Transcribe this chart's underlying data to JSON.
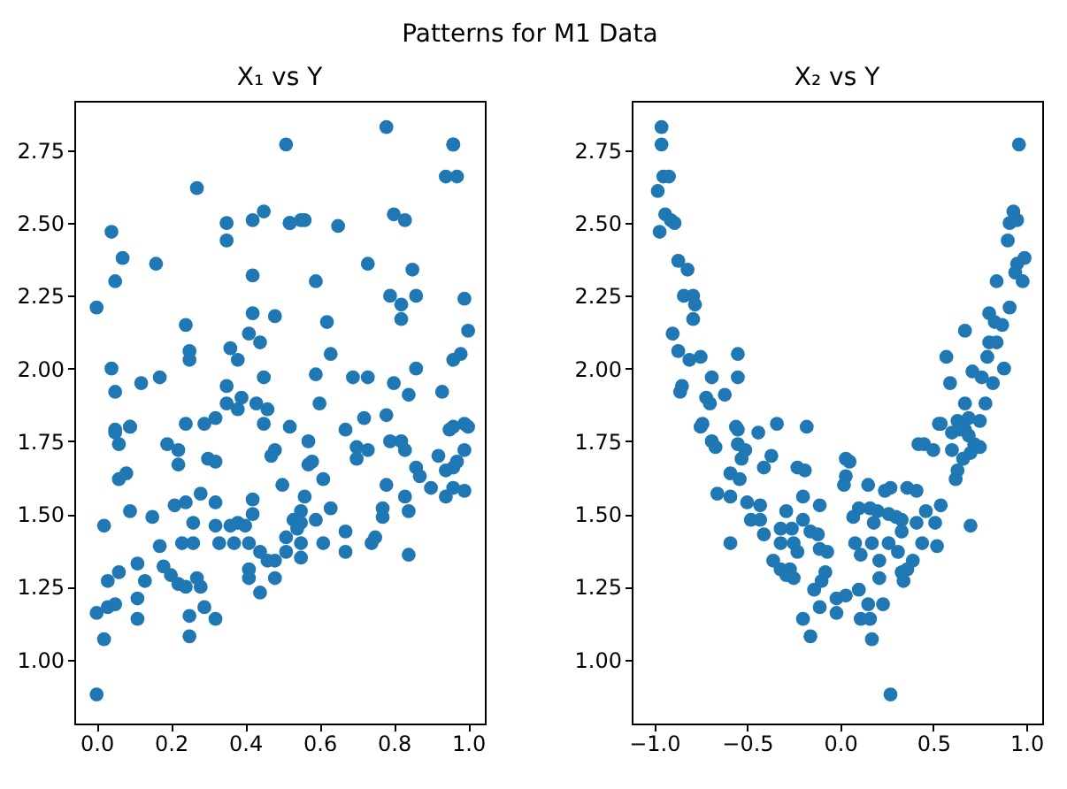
{
  "chart_data": [
    {
      "type": "scatter",
      "title": "X₁ vs Y",
      "annotations": [
        "Patterns for M1 Data"
      ],
      "color": "#1f77b4",
      "marker": "circle",
      "grid": false,
      "xlim": [
        -0.06,
        1.045
      ],
      "ylim": [
        0.78,
        2.92
      ],
      "xticks": [
        {
          "value": 0,
          "label": "0.0"
        },
        {
          "value": 0.2,
          "label": "0.2"
        },
        {
          "value": 0.4,
          "label": "0.4"
        },
        {
          "value": 0.6,
          "label": "0.6"
        },
        {
          "value": 0.8,
          "label": "0.8"
        },
        {
          "value": 1,
          "label": "1.0"
        }
      ],
      "yticks": [
        {
          "value": 1,
          "label": "1.00"
        },
        {
          "value": 1.25,
          "label": "1.25"
        },
        {
          "value": 1.5,
          "label": "1.50"
        },
        {
          "value": 1.75,
          "label": "1.75"
        },
        {
          "value": 2,
          "label": "2.00"
        },
        {
          "value": 2.25,
          "label": "2.25"
        },
        {
          "value": 2.5,
          "label": "2.50"
        },
        {
          "value": 2.75,
          "label": "2.75"
        }
      ],
      "x": [
        0.78,
        0.51,
        0.96,
        0.94,
        0.97,
        0.27,
        0.35,
        0.42,
        0.55,
        0.52,
        0.0,
        0.04,
        0.05,
        0.07,
        0.16,
        0.04,
        0.05,
        0.12,
        0.17,
        0.05,
        0.09,
        0.24,
        0.25,
        0.25,
        0.24,
        0.29,
        0.32,
        0.35,
        0.36,
        0.35,
        0.35,
        0.38,
        0.39,
        0.38,
        0.42,
        0.42,
        0.41,
        0.44,
        0.45,
        0.43,
        0.46,
        0.45,
        0.45,
        0.48,
        0.52,
        0.56,
        0.52,
        0.59,
        0.62,
        0.63,
        0.59,
        0.6,
        0.65,
        0.69,
        0.73,
        0.73,
        0.72,
        0.67,
        0.78,
        0.8,
        0.83,
        0.79,
        0.82,
        0.82,
        0.85,
        0.86,
        0.8,
        0.84,
        0.86,
        0.93,
        0.96,
        0.99,
        1.0,
        0.96,
        0.98,
        0.96,
        0.99,
        0.0,
        0.02,
        0.0,
        0.02,
        0.03,
        0.05,
        0.03,
        0.06,
        0.05,
        0.06,
        0.09,
        0.06,
        0.08,
        0.09,
        0.11,
        0.11,
        0.11,
        0.13,
        0.15,
        0.17,
        0.19,
        0.22,
        0.22,
        0.18,
        0.2,
        0.22,
        0.24,
        0.21,
        0.24,
        0.26,
        0.23,
        0.26,
        0.28,
        0.27,
        0.28,
        0.25,
        0.25,
        0.29,
        0.32,
        0.3,
        0.32,
        0.32,
        0.32,
        0.33,
        0.36,
        0.38,
        0.37,
        0.4,
        0.41,
        0.42,
        0.42,
        0.41,
        0.41,
        0.44,
        0.44,
        0.47,
        0.48,
        0.46,
        0.48,
        0.48,
        0.5,
        0.51,
        0.51,
        0.53,
        0.54,
        0.55,
        0.55,
        0.55,
        0.56,
        0.55,
        0.57,
        0.57,
        0.58,
        0.59,
        0.61,
        0.61,
        0.63,
        0.67,
        0.67,
        0.7,
        0.7,
        0.73,
        0.74,
        0.75,
        0.77,
        0.77,
        0.78,
        0.79,
        0.82,
        0.83,
        0.83,
        0.84,
        0.84,
        0.86,
        0.87,
        0.9,
        0.92,
        0.94,
        0.94,
        0.96,
        0.96,
        0.97,
        0.99,
        0.99,
        0.95,
        1.0
      ],
      "values": [
        2.83,
        2.77,
        2.77,
        2.66,
        2.66,
        2.62,
        2.5,
        2.51,
        2.51,
        2.5,
        2.21,
        2.47,
        2.3,
        2.38,
        2.36,
        2.0,
        1.92,
        1.95,
        1.97,
        1.78,
        1.8,
        2.15,
        2.06,
        2.03,
        1.81,
        1.81,
        1.83,
        2.44,
        2.07,
        1.94,
        1.88,
        1.86,
        1.9,
        2.03,
        2.32,
        2.19,
        2.12,
        2.09,
        1.97,
        1.88,
        1.86,
        1.81,
        2.54,
        2.18,
        2.5,
        2.51,
        1.8,
        2.3,
        2.16,
        2.05,
        1.98,
        1.88,
        2.49,
        1.97,
        1.97,
        2.36,
        1.83,
        1.79,
        1.84,
        2.53,
        2.51,
        2.25,
        2.22,
        2.17,
        2.34,
        2.25,
        1.95,
        1.91,
        2.0,
        1.92,
        2.77,
        2.24,
        2.13,
        2.03,
        2.05,
        1.8,
        1.81,
        1.16,
        1.07,
        0.88,
        1.46,
        1.18,
        1.19,
        1.27,
        1.3,
        1.79,
        1.74,
        1.8,
        1.62,
        1.64,
        1.51,
        1.33,
        1.21,
        1.14,
        1.27,
        1.49,
        1.39,
        1.74,
        1.72,
        1.67,
        1.32,
        1.29,
        1.26,
        1.25,
        1.53,
        1.54,
        1.47,
        1.4,
        1.4,
        1.57,
        1.28,
        1.25,
        1.15,
        1.08,
        1.18,
        1.14,
        1.69,
        1.68,
        1.54,
        1.46,
        1.4,
        1.46,
        1.47,
        1.4,
        1.46,
        1.4,
        1.55,
        1.5,
        1.31,
        1.28,
        1.23,
        1.37,
        1.7,
        1.72,
        1.34,
        1.34,
        1.28,
        1.6,
        1.42,
        1.37,
        1.48,
        1.45,
        1.51,
        1.47,
        1.35,
        1.56,
        1.4,
        1.75,
        1.67,
        1.68,
        1.48,
        1.62,
        1.4,
        1.52,
        1.44,
        1.37,
        1.73,
        1.69,
        1.72,
        1.4,
        1.42,
        1.52,
        1.49,
        1.6,
        1.75,
        1.75,
        1.72,
        1.56,
        1.51,
        1.36,
        1.66,
        1.63,
        1.59,
        1.7,
        1.56,
        1.65,
        1.59,
        1.66,
        1.68,
        1.72,
        1.58,
        1.79,
        1.8
      ]
    },
    {
      "type": "scatter",
      "title": "X₂ vs Y",
      "color": "#1f77b4",
      "marker": "circle",
      "grid": false,
      "xlim": [
        -1.12,
        1.085
      ],
      "ylim": [
        0.78,
        2.92
      ],
      "xticks": [
        {
          "value": -1,
          "label": "−1.0"
        },
        {
          "value": -0.5,
          "label": "−0.5"
        },
        {
          "value": 0,
          "label": "0.0"
        },
        {
          "value": 0.5,
          "label": "0.5"
        },
        {
          "value": 1,
          "label": "1.0"
        }
      ],
      "yticks": [
        {
          "value": 1,
          "label": "1.00"
        },
        {
          "value": 1.25,
          "label": "1.25"
        },
        {
          "value": 1.5,
          "label": "1.50"
        },
        {
          "value": 1.75,
          "label": "1.75"
        },
        {
          "value": 2,
          "label": "2.00"
        },
        {
          "value": 2.25,
          "label": "2.25"
        },
        {
          "value": 2.5,
          "label": "2.50"
        },
        {
          "value": 2.75,
          "label": "2.75"
        }
      ],
      "x": [
        -0.96,
        -0.96,
        -0.95,
        -0.92,
        -0.98,
        -0.97,
        -0.94,
        -0.91,
        -0.89,
        -0.87,
        -0.82,
        -0.84,
        -0.79,
        -0.78,
        -0.79,
        -0.9,
        -0.87,
        -0.81,
        -0.75,
        -0.85,
        -0.86,
        -0.69,
        -0.72,
        -0.7,
        -0.62,
        -0.55,
        -0.55,
        -0.74,
        -0.55,
        -0.44,
        -0.34,
        -0.18,
        0.96,
        0.93,
        0.91,
        0.95,
        0.9,
        0.99,
        0.95,
        0.94,
        0.98,
        0.84,
        0.91,
        0.8,
        0.83,
        0.87,
        0.67,
        0.8,
        0.84,
        0.79,
        0.88,
        0.71,
        0.76,
        0.82,
        0.57,
        0.59,
        0.67,
        0.78,
        0.53,
        0.63,
        0.69,
        0.75,
        0.6,
        0.67,
        -0.75,
        -0.69,
        -0.67,
        -0.56,
        -0.55,
        -0.51,
        -0.53,
        -0.59,
        -0.54,
        -0.37,
        -0.41,
        -0.66,
        -0.59,
        -0.5,
        -0.43,
        -0.48,
        -0.43,
        -0.41,
        -0.59,
        -0.29,
        -0.23,
        -0.19,
        -0.2,
        -0.11,
        -0.32,
        -0.26,
        -0.32,
        -0.25,
        -0.2,
        -0.16,
        -0.12,
        -0.23,
        -0.36,
        -0.32,
        -0.27,
        -0.25,
        -0.29,
        -0.11,
        -0.07,
        -0.08,
        -0.1,
        -0.14,
        -0.2,
        -0.16,
        -0.11,
        -0.02,
        -0.02,
        0.03,
        0.03,
        0.05,
        0.03,
        0.02,
        0.1,
        0.11,
        0.16,
        0.15,
        0.17,
        0.23,
        0.27,
        0.15,
        0.24,
        0.1,
        0.16,
        0.07,
        0.2,
        0.26,
        0.18,
        0.3,
        0.33,
        0.08,
        0.17,
        0.26,
        0.11,
        0.21,
        0.21,
        0.31,
        0.33,
        0.34,
        0.36,
        0.39,
        0.27,
        0.36,
        0.41,
        0.33,
        0.41,
        0.44,
        0.51,
        0.52,
        0.46,
        0.54,
        0.7,
        0.42,
        0.45,
        0.5,
        0.6,
        0.62,
        0.54,
        0.64,
        0.69,
        0.72,
        0.75,
        0.66,
        0.7,
        0.63
      ],
      "values": [
        2.83,
        2.77,
        2.66,
        2.66,
        2.61,
        2.47,
        2.53,
        2.51,
        2.5,
        2.37,
        2.34,
        2.25,
        2.25,
        2.22,
        2.17,
        2.12,
        2.06,
        2.03,
        2.04,
        1.94,
        1.92,
        1.97,
        1.9,
        1.88,
        1.91,
        2.05,
        1.97,
        1.81,
        1.79,
        1.78,
        1.81,
        1.8,
        2.77,
        2.54,
        2.5,
        2.51,
        2.44,
        2.38,
        2.36,
        2.33,
        2.3,
        2.3,
        2.21,
        2.19,
        2.16,
        2.15,
        2.13,
        2.09,
        2.09,
        2.04,
        2.0,
        1.99,
        1.97,
        1.95,
        2.04,
        1.95,
        1.88,
        1.88,
        1.81,
        1.82,
        1.83,
        1.82,
        1.78,
        1.79,
        1.8,
        1.75,
        1.73,
        1.8,
        1.74,
        1.72,
        1.69,
        1.64,
        1.62,
        1.7,
        1.66,
        1.57,
        1.56,
        1.54,
        1.53,
        1.48,
        1.48,
        1.43,
        1.4,
        1.51,
        1.66,
        1.65,
        1.56,
        1.53,
        1.45,
        1.45,
        1.4,
        1.4,
        1.48,
        1.44,
        1.43,
        1.37,
        1.34,
        1.31,
        1.31,
        1.28,
        1.29,
        1.38,
        1.37,
        1.3,
        1.27,
        1.24,
        1.14,
        1.08,
        1.18,
        1.21,
        1.16,
        1.22,
        1.69,
        1.68,
        1.63,
        1.6,
        1.24,
        1.14,
        1.14,
        1.19,
        1.07,
        1.19,
        0.88,
        1.6,
        1.58,
        1.52,
        1.52,
        1.49,
        1.51,
        1.5,
        1.47,
        1.49,
        1.48,
        1.4,
        1.4,
        1.4,
        1.36,
        1.34,
        1.28,
        1.37,
        1.3,
        1.27,
        1.31,
        1.34,
        1.59,
        1.59,
        1.58,
        1.44,
        1.47,
        1.4,
        1.47,
        1.39,
        1.51,
        1.53,
        1.46,
        1.74,
        1.74,
        1.72,
        1.72,
        1.62,
        1.81,
        1.79,
        1.77,
        1.74,
        1.73,
        1.69,
        1.71,
        1.65
      ]
    }
  ]
}
